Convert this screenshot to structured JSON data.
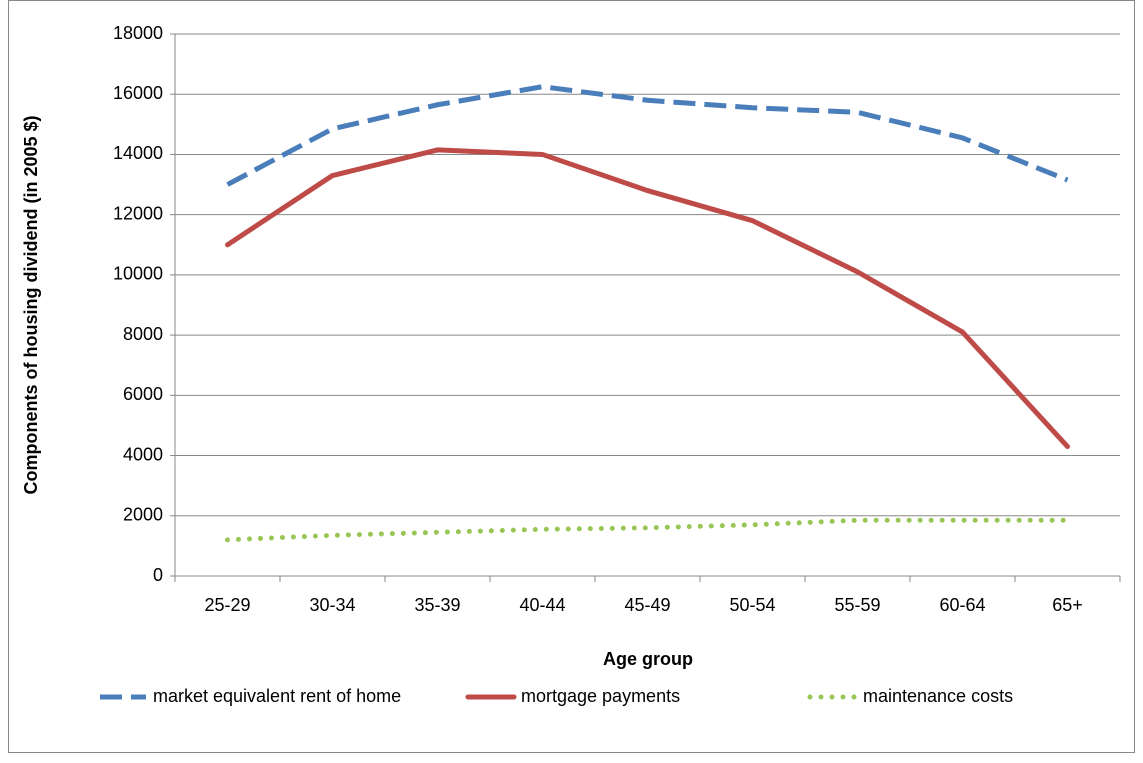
{
  "chart_data": {
    "type": "line",
    "x_label": "Age group",
    "y_label": "Components of housing dividend (in 2005 $)",
    "categories": [
      "25-29",
      "30-34",
      "35-39",
      "40-44",
      "45-49",
      "50-54",
      "55-59",
      "60-64",
      "65+"
    ],
    "series": [
      {
        "name": "market equivalent rent of home",
        "color": "#4a7ebb",
        "style": "dashed",
        "values": [
          13000,
          14850,
          15650,
          16250,
          15800,
          15550,
          15400,
          14550,
          13150
        ]
      },
      {
        "name": "mortgage payments",
        "color": "#be4b48",
        "style": "solid",
        "values": [
          11000,
          13300,
          14150,
          14000,
          12800,
          11800,
          10100,
          8100,
          4300
        ]
      },
      {
        "name": "maintenance costs",
        "color": "#98c654",
        "style": "dotted",
        "values": [
          1200,
          1350,
          1450,
          1550,
          1600,
          1700,
          1850,
          1850,
          1850
        ]
      }
    ],
    "ylim": [
      0,
      18000
    ],
    "yticks": [
      0,
      2000,
      4000,
      6000,
      8000,
      10000,
      12000,
      14000,
      16000,
      18000
    ],
    "grid": true,
    "legend": "bottom"
  }
}
